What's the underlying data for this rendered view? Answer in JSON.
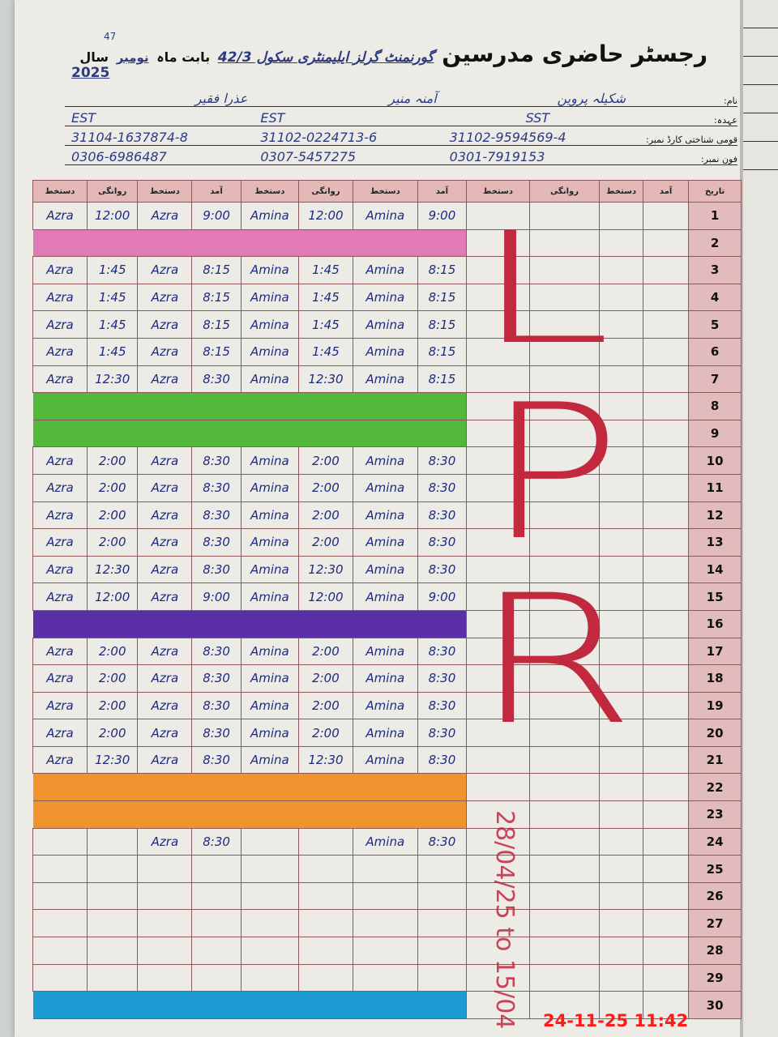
{
  "page_number": "47",
  "title": "رجسٹر حاضری مدرسین",
  "school": "گورنمنٹ گرلز ایلیمنٹری سکول 42/3",
  "month_label": "بابت ماہ",
  "month": "نومبر",
  "year_label": "سال",
  "year": "2025",
  "info_labels": {
    "name": "نام:",
    "designation": "عہدہ:",
    "cnic": "قومی شناختی کارڈ نمبر:",
    "phone": "فون نمبر:"
  },
  "teachers": [
    {
      "name": "عذرا فقیر",
      "designation": "EST",
      "cnic": "31104-1637874-8",
      "phone": "0306-6986487"
    },
    {
      "name": "آمنہ منیر",
      "designation": "EST",
      "cnic": "31102-0224713-6",
      "phone": "0307-5457275"
    },
    {
      "name": "شکیلہ پروین",
      "designation": "SST",
      "cnic": "31102-9594569-4",
      "phone": "0301-7919153"
    }
  ],
  "column_headers": [
    "دستخط",
    "روانگی",
    "دستخط",
    "آمد",
    "دستخط",
    "روانگی",
    "دستخط",
    "آمد",
    "دستخط",
    "روانگی",
    "دستخط",
    "آمد",
    "تاریخ"
  ],
  "band_colors": {
    "pink": "#e27ab8",
    "green": "#52b83c",
    "purple": "#5b2fa6",
    "orange": "#f0922e",
    "blue": "#1c9bd2"
  },
  "rows": [
    {
      "date": "1",
      "cells": [
        "Azra",
        "12:00",
        "Azra",
        "9:00",
        "Amina",
        "12:00",
        "Amina",
        "9:00"
      ]
    },
    {
      "date": "2",
      "band": "pink"
    },
    {
      "date": "3",
      "cells": [
        "Azra",
        "1:45",
        "Azra",
        "8:15",
        "Amina",
        "1:45",
        "Amina",
        "8:15"
      ]
    },
    {
      "date": "4",
      "cells": [
        "Azra",
        "1:45",
        "Azra",
        "8:15",
        "Amina",
        "1:45",
        "Amina",
        "8:15"
      ]
    },
    {
      "date": "5",
      "cells": [
        "Azra",
        "1:45",
        "Azra",
        "8:15",
        "Amina",
        "1:45",
        "Amina",
        "8:15"
      ]
    },
    {
      "date": "6",
      "cells": [
        "Azra",
        "1:45",
        "Azra",
        "8:15",
        "Amina",
        "1:45",
        "Amina",
        "8:15"
      ]
    },
    {
      "date": "7",
      "cells": [
        "Azra",
        "12:30",
        "Azra",
        "8:30",
        "Amina",
        "12:30",
        "Amina",
        "8:15"
      ]
    },
    {
      "date": "8",
      "band": "green"
    },
    {
      "date": "9",
      "band": "green"
    },
    {
      "date": "10",
      "cells": [
        "Azra",
        "2:00",
        "Azra",
        "8:30",
        "Amina",
        "2:00",
        "Amina",
        "8:30"
      ]
    },
    {
      "date": "11",
      "cells": [
        "Azra",
        "2:00",
        "Azra",
        "8:30",
        "Amina",
        "2:00",
        "Amina",
        "8:30"
      ]
    },
    {
      "date": "12",
      "cells": [
        "Azra",
        "2:00",
        "Azra",
        "8:30",
        "Amina",
        "2:00",
        "Amina",
        "8:30"
      ]
    },
    {
      "date": "13",
      "cells": [
        "Azra",
        "2:00",
        "Azra",
        "8:30",
        "Amina",
        "2:00",
        "Amina",
        "8:30"
      ]
    },
    {
      "date": "14",
      "cells": [
        "Azra",
        "12:30",
        "Azra",
        "8:30",
        "Amina",
        "12:30",
        "Amina",
        "8:30"
      ]
    },
    {
      "date": "15",
      "cells": [
        "Azra",
        "12:00",
        "Azra",
        "9:00",
        "Amina",
        "12:00",
        "Amina",
        "9:00"
      ]
    },
    {
      "date": "16",
      "band": "purple"
    },
    {
      "date": "17",
      "cells": [
        "Azra",
        "2:00",
        "Azra",
        "8:30",
        "Amina",
        "2:00",
        "Amina",
        "8:30"
      ]
    },
    {
      "date": "18",
      "cells": [
        "Azra",
        "2:00",
        "Azra",
        "8:30",
        "Amina",
        "2:00",
        "Amina",
        "8:30"
      ]
    },
    {
      "date": "19",
      "cells": [
        "Azra",
        "2:00",
        "Azra",
        "8:30",
        "Amina",
        "2:00",
        "Amina",
        "8:30"
      ]
    },
    {
      "date": "20",
      "cells": [
        "Azra",
        "2:00",
        "Azra",
        "8:30",
        "Amina",
        "2:00",
        "Amina",
        "8:30"
      ]
    },
    {
      "date": "21",
      "cells": [
        "Azra",
        "12:30",
        "Azra",
        "8:30",
        "Amina",
        "12:30",
        "Amina",
        "8:30"
      ]
    },
    {
      "date": "22",
      "band": "orange"
    },
    {
      "date": "23",
      "band": "orange"
    },
    {
      "date": "24",
      "cells": [
        "",
        "",
        "Azra",
        "8:30",
        "",
        "",
        "Amina",
        "8:30"
      ]
    },
    {
      "date": "25"
    },
    {
      "date": "26"
    },
    {
      "date": "27"
    },
    {
      "date": "28"
    },
    {
      "date": "29"
    },
    {
      "date": "30",
      "band": "blue"
    }
  ],
  "leave_marks": [
    "L",
    "P",
    "R"
  ],
  "leave_note": "28/04/25 to 15/04",
  "camera_timestamp": "24-11-25  11:42"
}
